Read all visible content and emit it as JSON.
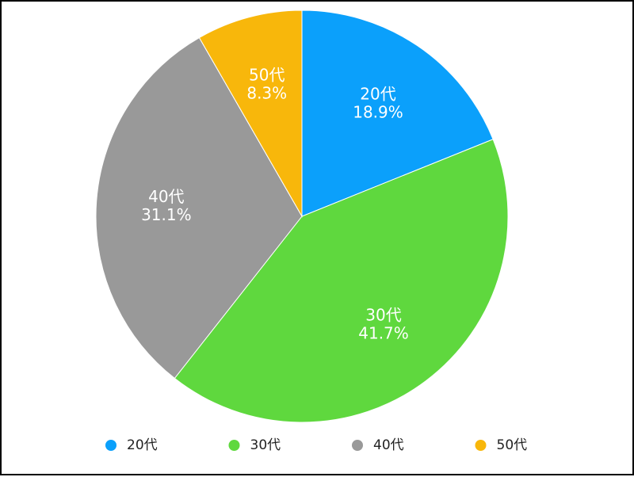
{
  "chart_data": {
    "type": "pie",
    "categories": [
      "20代",
      "30代",
      "40代",
      "50代"
    ],
    "values": [
      18.9,
      41.7,
      31.1,
      8.3
    ],
    "value_labels": [
      "18.9%",
      "41.7%",
      "31.1%",
      "8.3%"
    ],
    "colors": [
      "#0ba0fb",
      "#5fd83e",
      "#999999",
      "#f8b70b"
    ],
    "legend": "bottom"
  }
}
